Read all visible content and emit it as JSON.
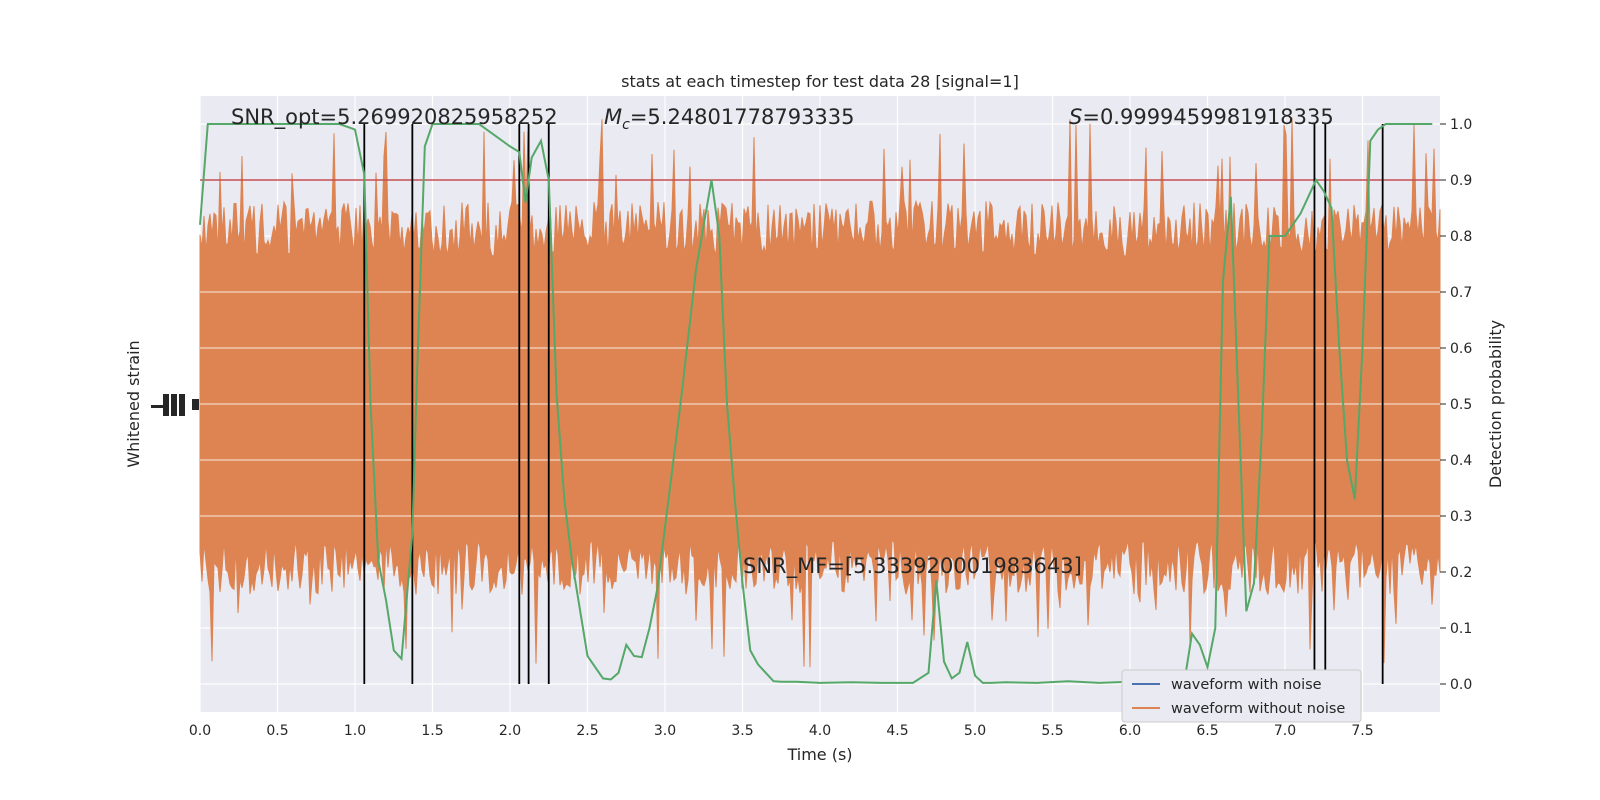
{
  "chart_data": {
    "type": "line",
    "title": "stats at each timestep for test data 28 [signal=1]",
    "xlabel": "Time (s)",
    "ylabel_left": "Whitened strain",
    "ylabel_right": "Detection probability",
    "xlim": [
      0.0,
      8.0
    ],
    "ylim_right": [
      -0.05,
      1.05
    ],
    "grid": true,
    "x_ticks": [
      "0.0",
      "0.5",
      "1.0",
      "1.5",
      "2.0",
      "2.5",
      "3.0",
      "3.5",
      "4.0",
      "4.5",
      "5.0",
      "5.5",
      "6.0",
      "6.5",
      "7.0",
      "7.5"
    ],
    "x_tick_values": [
      0.0,
      0.5,
      1.0,
      1.5,
      2.0,
      2.5,
      3.0,
      3.5,
      4.0,
      4.5,
      5.0,
      5.5,
      6.0,
      6.5,
      7.0,
      7.5
    ],
    "y_right_ticks": [
      "0.0",
      "0.1",
      "0.2",
      "0.3",
      "0.4",
      "0.5",
      "0.6",
      "0.7",
      "0.8",
      "0.9",
      "1.0"
    ],
    "y_right_tick_values": [
      0.0,
      0.1,
      0.2,
      0.3,
      0.4,
      0.5,
      0.6,
      0.7,
      0.8,
      0.9,
      1.0
    ],
    "annotations": {
      "snr_opt": "SNR_opt=5.269920825958252",
      "mc": "=5.24801778793335",
      "mc_symbol": "M",
      "mc_sub": "c",
      "s_symbol": "S",
      "s": "=0.9999459981918335",
      "snr_mf": "SNR_MF=[5.333920001983643]"
    },
    "legend": {
      "position": "lower-right",
      "entries": [
        {
          "label": "waveform with noise",
          "color": "#4c72b0"
        },
        {
          "label": "waveform without noise",
          "color": "#dd8452"
        }
      ]
    },
    "threshold": {
      "value": 0.9,
      "color": "#c44e52"
    },
    "vertical_lines": [
      1.06,
      1.37,
      2.06,
      2.12,
      2.25,
      7.19,
      7.26,
      7.63
    ],
    "colors": {
      "noise_band": "#dd8452",
      "probability": "#55a868",
      "background": "#eaeaf2",
      "grid": "#ffffff",
      "vlines": "#000000"
    },
    "strain_band": {
      "x_range": [
        0.0,
        8.0
      ],
      "typical_fraction_low": 0.28,
      "typical_fraction_high": 0.74
    },
    "probability_series": {
      "name": "",
      "x": [
        0.0,
        0.05,
        0.1,
        0.15,
        0.2,
        0.3,
        0.5,
        0.7,
        0.9,
        1.0,
        1.06,
        1.1,
        1.15,
        1.2,
        1.25,
        1.3,
        1.37,
        1.4,
        1.45,
        1.5,
        1.6,
        1.8,
        1.9,
        2.0,
        2.06,
        2.1,
        2.14,
        2.2,
        2.25,
        2.3,
        2.35,
        2.4,
        2.5,
        2.6,
        2.65,
        2.7,
        2.75,
        2.8,
        2.85,
        2.9,
        2.95,
        3.0,
        3.1,
        3.2,
        3.3,
        3.35,
        3.4,
        3.45,
        3.5,
        3.55,
        3.6,
        3.7,
        3.75,
        3.85,
        4.0,
        4.2,
        4.4,
        4.5,
        4.6,
        4.7,
        4.75,
        4.8,
        4.85,
        4.9,
        4.95,
        5.0,
        5.05,
        5.1,
        5.2,
        5.4,
        5.6,
        5.8,
        6.0,
        6.2,
        6.35,
        6.4,
        6.45,
        6.5,
        6.55,
        6.6,
        6.65,
        6.7,
        6.75,
        6.8,
        6.85,
        6.9,
        7.0,
        7.1,
        7.15,
        7.2,
        7.25,
        7.3,
        7.35,
        7.4,
        7.45,
        7.5,
        7.55,
        7.6,
        7.65,
        7.7,
        7.8,
        7.9,
        7.95
      ],
      "y": [
        0.82,
        1.0,
        1.0,
        1.0,
        1.0,
        1.0,
        1.0,
        1.0,
        1.0,
        0.99,
        0.91,
        0.5,
        0.22,
        0.15,
        0.06,
        0.045,
        0.27,
        0.55,
        0.96,
        1.0,
        1.0,
        1.0,
        0.98,
        0.96,
        0.95,
        0.86,
        0.94,
        0.97,
        0.9,
        0.52,
        0.33,
        0.22,
        0.05,
        0.01,
        0.008,
        0.02,
        0.07,
        0.05,
        0.048,
        0.1,
        0.17,
        0.28,
        0.5,
        0.74,
        0.9,
        0.8,
        0.5,
        0.33,
        0.18,
        0.06,
        0.035,
        0.005,
        0.004,
        0.004,
        0.002,
        0.003,
        0.002,
        0.002,
        0.002,
        0.02,
        0.185,
        0.04,
        0.01,
        0.02,
        0.075,
        0.015,
        0.002,
        0.002,
        0.003,
        0.002,
        0.005,
        0.002,
        0.004,
        0.003,
        0.003,
        0.09,
        0.07,
        0.03,
        0.1,
        0.72,
        0.87,
        0.5,
        0.13,
        0.18,
        0.45,
        0.8,
        0.8,
        0.84,
        0.87,
        0.9,
        0.88,
        0.85,
        0.6,
        0.4,
        0.33,
        0.6,
        0.97,
        0.99,
        1.0,
        1.0,
        1.0,
        1.0,
        1.0
      ]
    }
  }
}
